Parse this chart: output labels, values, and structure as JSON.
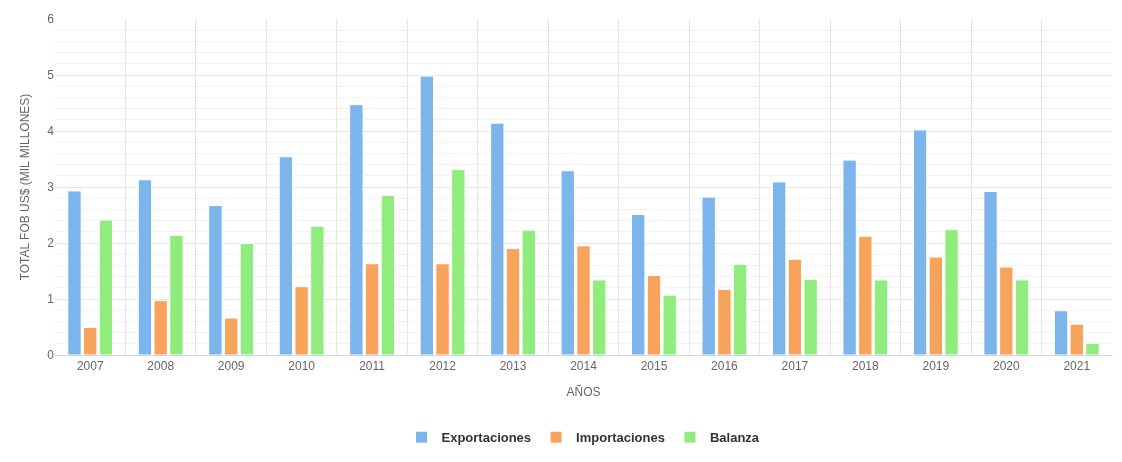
{
  "chart_data": {
    "type": "bar",
    "xlabel": "AÑOS",
    "ylabel": "TOTAL FOB US$ (MIL MILLONES)",
    "categories": [
      "2007",
      "2008",
      "2009",
      "2010",
      "2011",
      "2012",
      "2013",
      "2014",
      "2015",
      "2016",
      "2017",
      "2018",
      "2019",
      "2020",
      "2021"
    ],
    "series": [
      {
        "name": "Exportaciones",
        "color": "#7cb5ec",
        "values": [
          2.93,
          3.13,
          2.67,
          3.54,
          4.47,
          4.98,
          4.14,
          3.29,
          2.51,
          2.82,
          3.09,
          3.48,
          4.02,
          2.92,
          0.79
        ]
      },
      {
        "name": "Importaciones",
        "color": "#f7a35c",
        "values": [
          0.49,
          0.97,
          0.66,
          1.22,
          1.63,
          1.63,
          1.9,
          1.95,
          1.42,
          1.17,
          1.71,
          2.12,
          1.75,
          1.57,
          0.55
        ]
      },
      {
        "name": "Balanza",
        "color": "#90ed7d",
        "values": [
          2.41,
          2.14,
          1.99,
          2.3,
          2.85,
          3.31,
          2.23,
          1.34,
          1.07,
          1.62,
          1.35,
          1.34,
          2.24,
          1.34,
          0.21
        ]
      }
    ],
    "ylim": [
      0,
      6
    ],
    "yticks": [
      0,
      1,
      2,
      3,
      4,
      5,
      6
    ],
    "grid": true,
    "legend": "bottom"
  }
}
